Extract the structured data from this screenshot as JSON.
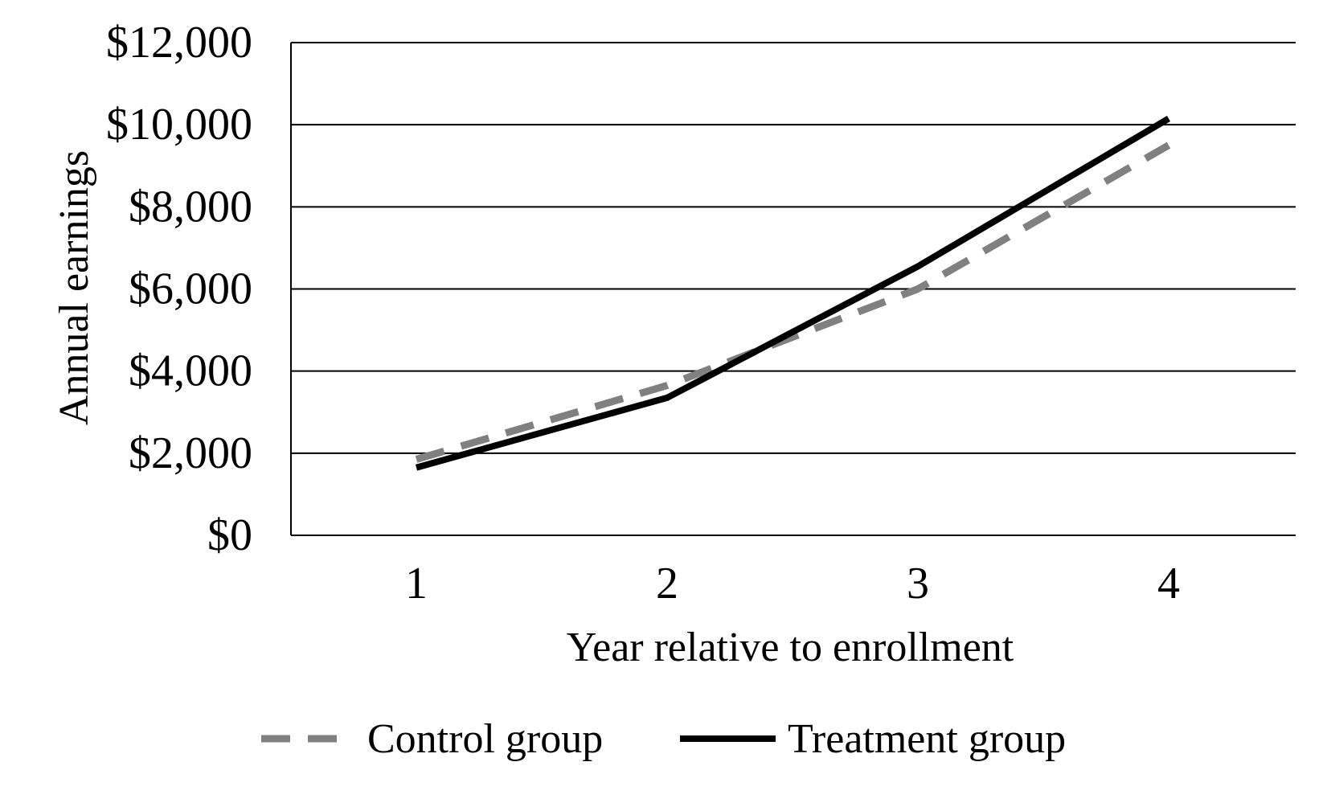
{
  "chart_data": {
    "type": "line",
    "title": "",
    "xlabel": "Year relative to enrollment",
    "ylabel": "Annual earnings",
    "categories": [
      "1",
      "2",
      "3",
      "4"
    ],
    "x": [
      1,
      2,
      3,
      4
    ],
    "ylim": [
      0,
      12000
    ],
    "y_ticks": [
      0,
      2000,
      4000,
      6000,
      8000,
      10000,
      12000
    ],
    "y_tick_labels": [
      "$0",
      "$2,000",
      "$4,000",
      "$6,000",
      "$8,000",
      "$10,000",
      "$12,000"
    ],
    "grid": "horizontal",
    "legend_position": "bottom",
    "series": [
      {
        "name": "Control group",
        "values": [
          1850,
          3650,
          6000,
          9500
        ],
        "color": "#808080",
        "style": "dashed"
      },
      {
        "name": "Treatment group",
        "values": [
          1650,
          3350,
          6550,
          10150
        ],
        "color": "#000000",
        "style": "solid"
      }
    ]
  }
}
